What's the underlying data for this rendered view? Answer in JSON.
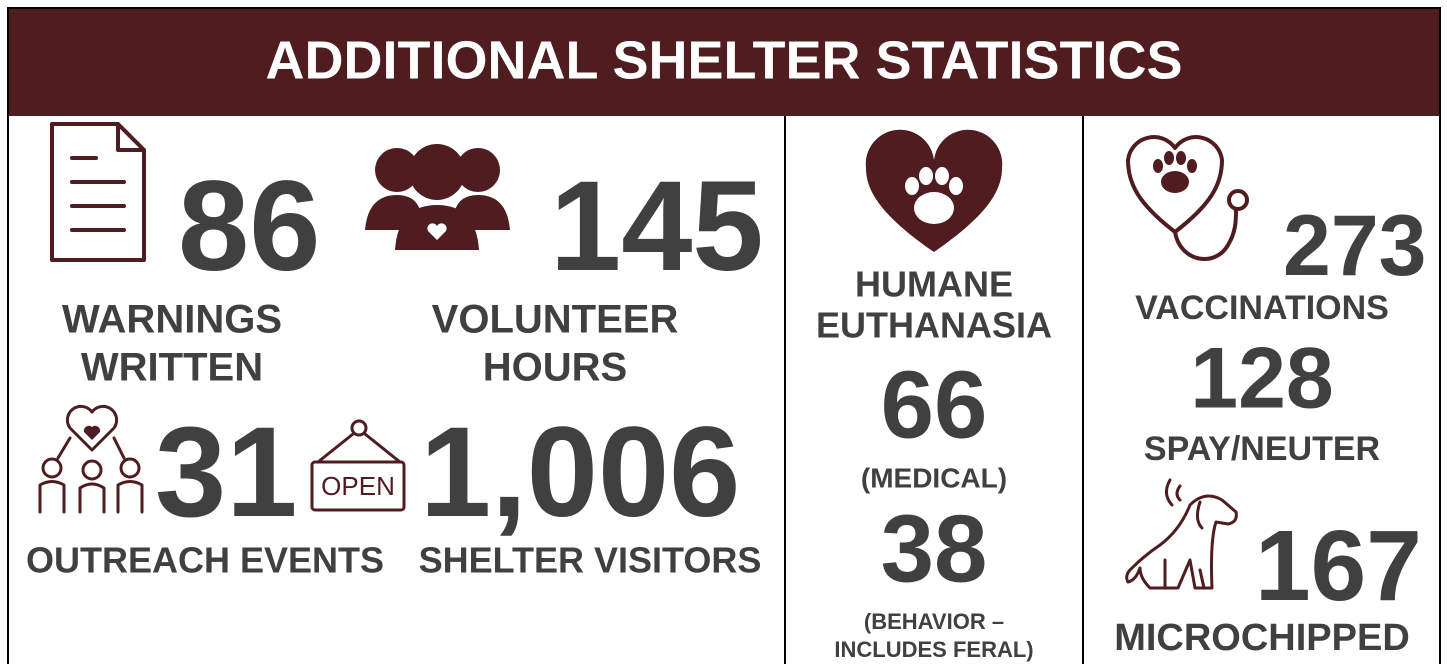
{
  "header": {
    "title": "ADDITIONAL SHELTER STATISTICS"
  },
  "warnings": {
    "value": "86",
    "label": [
      "WARNINGS",
      "WRITTEN"
    ]
  },
  "volunteer": {
    "value": "145",
    "label": [
      "VOLUNTEER",
      "HOURS"
    ]
  },
  "outreach": {
    "value": "31",
    "label": "OUTREACH EVENTS"
  },
  "visitors": {
    "value": "1,006",
    "label": "SHELTER VISITORS",
    "sign": "OPEN"
  },
  "euthanasia": {
    "label": [
      "HUMANE",
      "EUTHANASIA"
    ],
    "items": [
      {
        "value": "66",
        "note": [
          "(MEDICAL)"
        ]
      },
      {
        "value": "38",
        "note": [
          "(BEHAVIOR –",
          "INCLUDES FERAL)"
        ]
      }
    ]
  },
  "vaccinations": {
    "value": "273",
    "label": "VACCINATIONS"
  },
  "spay": {
    "value": "128",
    "label": "SPAY/NEUTER"
  },
  "microchipped": {
    "value": "167",
    "label": "MICROCHIPPED"
  }
}
